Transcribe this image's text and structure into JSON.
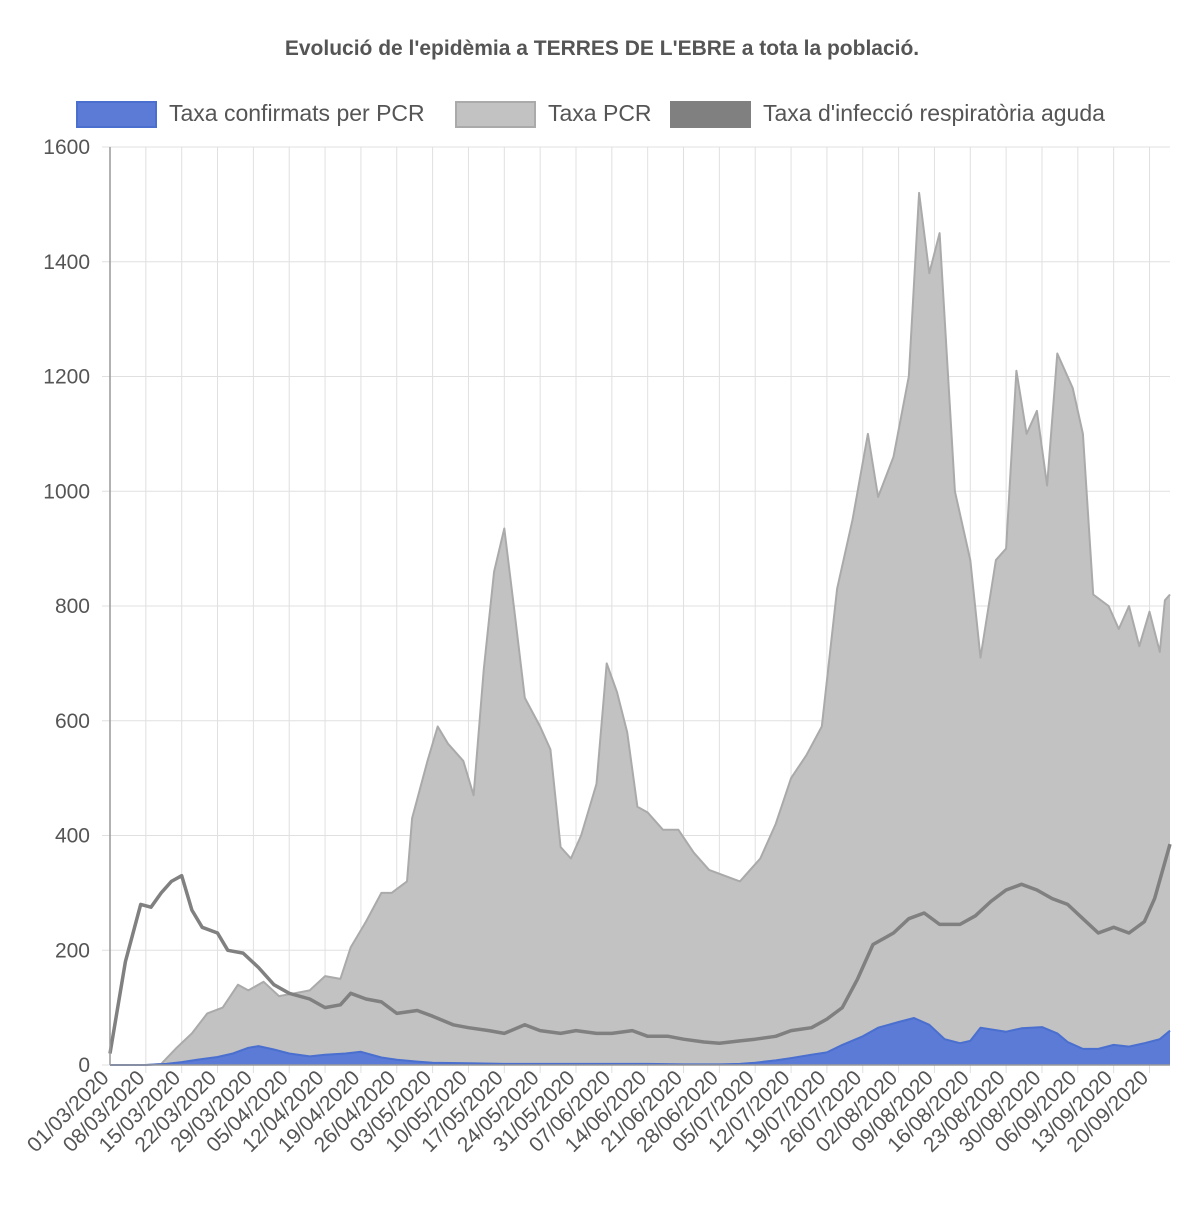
{
  "chart_data": {
    "type": "area",
    "title": "Evolució de l'epidèmia a TERRES DE L'EBRE a tota la població.",
    "xlabel": "",
    "ylabel": "",
    "ylim": [
      0,
      1600
    ],
    "y_ticks": [
      0,
      200,
      400,
      600,
      800,
      1000,
      1200,
      1400,
      1600
    ],
    "x_range": [
      "01/03/2020",
      "24/09/2020"
    ],
    "x_tick_labels": [
      "01/03/2020",
      "08/03/2020",
      "15/03/2020",
      "22/03/2020",
      "29/03/2020",
      "05/04/2020",
      "12/04/2020",
      "19/04/2020",
      "26/04/2020",
      "03/05/2020",
      "10/05/2020",
      "17/05/2020",
      "24/05/2020",
      "31/05/2020",
      "07/06/2020",
      "14/06/2020",
      "21/06/2020",
      "28/06/2020",
      "05/07/2020",
      "12/07/2020",
      "19/07/2020",
      "26/07/2020",
      "02/08/2020",
      "09/08/2020",
      "16/08/2020",
      "23/08/2020",
      "30/08/2020",
      "06/09/2020",
      "13/09/2020",
      "20/09/2020"
    ],
    "grid": true,
    "legend_position": "top",
    "series": [
      {
        "name": "Taxa confirmats per PCR",
        "color": "#4a6fcf",
        "fill": "#5b7bd6",
        "points": [
          [
            "01/03/2020",
            0
          ],
          [
            "08/03/2020",
            0
          ],
          [
            "12/03/2020",
            2
          ],
          [
            "15/03/2020",
            5
          ],
          [
            "18/03/2020",
            9
          ],
          [
            "22/03/2020",
            14
          ],
          [
            "25/03/2020",
            20
          ],
          [
            "28/03/2020",
            30
          ],
          [
            "30/03/2020",
            33
          ],
          [
            "02/04/2020",
            27
          ],
          [
            "05/04/2020",
            20
          ],
          [
            "09/04/2020",
            15
          ],
          [
            "12/04/2020",
            18
          ],
          [
            "16/04/2020",
            20
          ],
          [
            "19/04/2020",
            23
          ],
          [
            "23/04/2020",
            13
          ],
          [
            "26/04/2020",
            9
          ],
          [
            "30/04/2020",
            6
          ],
          [
            "03/05/2020",
            4
          ],
          [
            "10/05/2020",
            3
          ],
          [
            "17/05/2020",
            2
          ],
          [
            "24/05/2020",
            2
          ],
          [
            "31/05/2020",
            2
          ],
          [
            "07/06/2020",
            2
          ],
          [
            "14/06/2020",
            2
          ],
          [
            "21/06/2020",
            1
          ],
          [
            "28/06/2020",
            1
          ],
          [
            "02/07/2020",
            2
          ],
          [
            "05/07/2020",
            4
          ],
          [
            "09/07/2020",
            8
          ],
          [
            "12/07/2020",
            12
          ],
          [
            "16/07/2020",
            18
          ],
          [
            "19/07/2020",
            22
          ],
          [
            "22/07/2020",
            35
          ],
          [
            "26/07/2020",
            50
          ],
          [
            "29/07/2020",
            65
          ],
          [
            "02/08/2020",
            75
          ],
          [
            "05/08/2020",
            82
          ],
          [
            "08/08/2020",
            70
          ],
          [
            "11/08/2020",
            45
          ],
          [
            "14/08/2020",
            38
          ],
          [
            "16/08/2020",
            42
          ],
          [
            "18/08/2020",
            65
          ],
          [
            "20/08/2020",
            62
          ],
          [
            "23/08/2020",
            58
          ],
          [
            "26/08/2020",
            64
          ],
          [
            "30/08/2020",
            66
          ],
          [
            "02/09/2020",
            55
          ],
          [
            "04/09/2020",
            40
          ],
          [
            "07/09/2020",
            28
          ],
          [
            "10/09/2020",
            28
          ],
          [
            "13/09/2020",
            35
          ],
          [
            "16/09/2020",
            32
          ],
          [
            "19/09/2020",
            38
          ],
          [
            "22/09/2020",
            45
          ],
          [
            "24/09/2020",
            60
          ]
        ]
      },
      {
        "name": "Taxa PCR",
        "color": "#aaaaaa",
        "fill": "#c2c2c2",
        "points": [
          [
            "01/03/2020",
            0
          ],
          [
            "08/03/2020",
            0
          ],
          [
            "11/03/2020",
            2
          ],
          [
            "14/03/2020",
            30
          ],
          [
            "17/03/2020",
            55
          ],
          [
            "20/03/2020",
            90
          ],
          [
            "23/03/2020",
            100
          ],
          [
            "26/03/2020",
            140
          ],
          [
            "28/03/2020",
            130
          ],
          [
            "31/03/2020",
            145
          ],
          [
            "03/04/2020",
            120
          ],
          [
            "06/04/2020",
            125
          ],
          [
            "09/04/2020",
            130
          ],
          [
            "12/04/2020",
            155
          ],
          [
            "15/04/2020",
            150
          ],
          [
            "17/04/2020",
            205
          ],
          [
            "20/04/2020",
            250
          ],
          [
            "23/04/2020",
            300
          ],
          [
            "25/04/2020",
            300
          ],
          [
            "28/04/2020",
            320
          ],
          [
            "29/04/2020",
            430
          ],
          [
            "02/05/2020",
            530
          ],
          [
            "04/05/2020",
            590
          ],
          [
            "06/05/2020",
            560
          ],
          [
            "09/05/2020",
            530
          ],
          [
            "11/05/2020",
            470
          ],
          [
            "13/05/2020",
            690
          ],
          [
            "15/05/2020",
            860
          ],
          [
            "17/05/2020",
            935
          ],
          [
            "19/05/2020",
            790
          ],
          [
            "21/05/2020",
            640
          ],
          [
            "24/05/2020",
            590
          ],
          [
            "26/05/2020",
            550
          ],
          [
            "28/05/2020",
            380
          ],
          [
            "30/05/2020",
            360
          ],
          [
            "01/06/2020",
            400
          ],
          [
            "04/06/2020",
            490
          ],
          [
            "06/06/2020",
            700
          ],
          [
            "08/06/2020",
            650
          ],
          [
            "10/06/2020",
            580
          ],
          [
            "12/06/2020",
            450
          ],
          [
            "14/06/2020",
            440
          ],
          [
            "17/06/2020",
            410
          ],
          [
            "20/06/2020",
            410
          ],
          [
            "23/06/2020",
            370
          ],
          [
            "26/06/2020",
            340
          ],
          [
            "29/06/2020",
            330
          ],
          [
            "02/07/2020",
            320
          ],
          [
            "04/07/2020",
            340
          ],
          [
            "06/07/2020",
            360
          ],
          [
            "09/07/2020",
            420
          ],
          [
            "12/07/2020",
            500
          ],
          [
            "15/07/2020",
            540
          ],
          [
            "18/07/2020",
            590
          ],
          [
            "21/07/2020",
            830
          ],
          [
            "24/07/2020",
            950
          ],
          [
            "27/07/2020",
            1100
          ],
          [
            "29/07/2020",
            990
          ],
          [
            "01/08/2020",
            1060
          ],
          [
            "04/08/2020",
            1200
          ],
          [
            "06/08/2020",
            1520
          ],
          [
            "08/08/2020",
            1380
          ],
          [
            "10/08/2020",
            1450
          ],
          [
            "13/08/2020",
            1000
          ],
          [
            "16/08/2020",
            880
          ],
          [
            "18/08/2020",
            710
          ],
          [
            "21/08/2020",
            880
          ],
          [
            "23/08/2020",
            900
          ],
          [
            "25/08/2020",
            1210
          ],
          [
            "27/08/2020",
            1100
          ],
          [
            "29/08/2020",
            1140
          ],
          [
            "31/08/2020",
            1010
          ],
          [
            "02/09/2020",
            1240
          ],
          [
            "05/09/2020",
            1180
          ],
          [
            "07/09/2020",
            1100
          ],
          [
            "09/09/2020",
            820
          ],
          [
            "12/09/2020",
            800
          ],
          [
            "14/09/2020",
            760
          ],
          [
            "16/09/2020",
            800
          ],
          [
            "18/09/2020",
            730
          ],
          [
            "20/09/2020",
            790
          ],
          [
            "22/09/2020",
            720
          ],
          [
            "23/09/2020",
            810
          ],
          [
            "24/09/2020",
            820
          ]
        ]
      },
      {
        "name": "Taxa d'infecció respiratòria aguda",
        "color": "#808080",
        "fill": "#808080",
        "points": [
          [
            "01/03/2020",
            20
          ],
          [
            "04/03/2020",
            180
          ],
          [
            "07/03/2020",
            280
          ],
          [
            "09/03/2020",
            275
          ],
          [
            "11/03/2020",
            300
          ],
          [
            "13/03/2020",
            320
          ],
          [
            "15/03/2020",
            330
          ],
          [
            "17/03/2020",
            270
          ],
          [
            "19/03/2020",
            240
          ],
          [
            "22/03/2020",
            230
          ],
          [
            "24/03/2020",
            200
          ],
          [
            "27/03/2020",
            195
          ],
          [
            "30/03/2020",
            170
          ],
          [
            "02/04/2020",
            140
          ],
          [
            "05/04/2020",
            125
          ],
          [
            "09/04/2020",
            115
          ],
          [
            "12/04/2020",
            100
          ],
          [
            "15/04/2020",
            105
          ],
          [
            "17/04/2020",
            125
          ],
          [
            "20/04/2020",
            115
          ],
          [
            "23/04/2020",
            110
          ],
          [
            "26/04/2020",
            90
          ],
          [
            "30/04/2020",
            95
          ],
          [
            "03/05/2020",
            85
          ],
          [
            "07/05/2020",
            70
          ],
          [
            "10/05/2020",
            65
          ],
          [
            "14/05/2020",
            60
          ],
          [
            "17/05/2020",
            55
          ],
          [
            "21/05/2020",
            70
          ],
          [
            "24/05/2020",
            60
          ],
          [
            "28/05/2020",
            55
          ],
          [
            "31/05/2020",
            60
          ],
          [
            "04/06/2020",
            55
          ],
          [
            "07/06/2020",
            55
          ],
          [
            "11/06/2020",
            60
          ],
          [
            "14/06/2020",
            50
          ],
          [
            "18/06/2020",
            50
          ],
          [
            "21/06/2020",
            45
          ],
          [
            "25/06/2020",
            40
          ],
          [
            "28/06/2020",
            38
          ],
          [
            "02/07/2020",
            42
          ],
          [
            "05/07/2020",
            45
          ],
          [
            "09/07/2020",
            50
          ],
          [
            "12/07/2020",
            60
          ],
          [
            "16/07/2020",
            65
          ],
          [
            "19/07/2020",
            80
          ],
          [
            "22/07/2020",
            100
          ],
          [
            "25/07/2020",
            150
          ],
          [
            "28/07/2020",
            210
          ],
          [
            "01/08/2020",
            230
          ],
          [
            "04/08/2020",
            255
          ],
          [
            "07/08/2020",
            265
          ],
          [
            "10/08/2020",
            245
          ],
          [
            "14/08/2020",
            245
          ],
          [
            "17/08/2020",
            260
          ],
          [
            "20/08/2020",
            285
          ],
          [
            "23/08/2020",
            305
          ],
          [
            "26/08/2020",
            315
          ],
          [
            "29/08/2020",
            305
          ],
          [
            "01/09/2020",
            290
          ],
          [
            "04/09/2020",
            280
          ],
          [
            "07/09/2020",
            255
          ],
          [
            "10/09/2020",
            230
          ],
          [
            "13/09/2020",
            240
          ],
          [
            "16/09/2020",
            230
          ],
          [
            "19/09/2020",
            250
          ],
          [
            "21/09/2020",
            290
          ],
          [
            "24/09/2020",
            385
          ]
        ]
      }
    ]
  }
}
